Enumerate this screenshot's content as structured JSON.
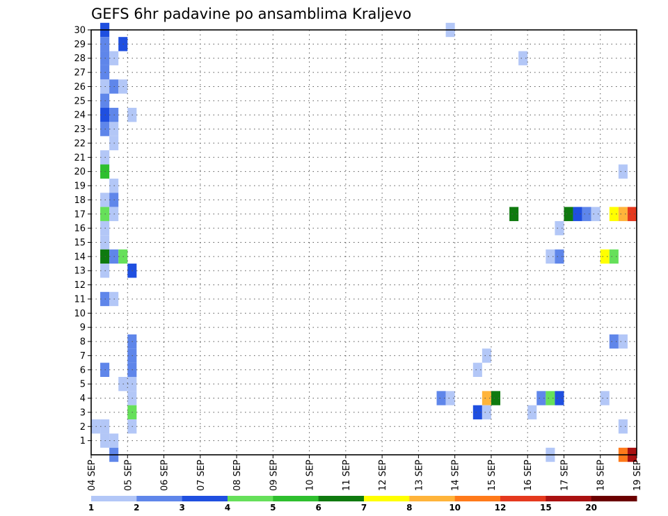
{
  "chart_data": {
    "type": "heatmap",
    "title": "GEFS 6hr padavine po ansamblima Kraljevo",
    "xlabel": "",
    "ylabel": "",
    "x_tick_labels": [
      "04 SEP",
      "05 SEP",
      "06 SEP",
      "07 SEP",
      "08 SEP",
      "09 SEP",
      "10 SEP",
      "11 SEP",
      "12 SEP",
      "13 SEP",
      "14 SEP",
      "15 SEP",
      "16 SEP",
      "17 SEP",
      "18 SEP",
      "19 SEP"
    ],
    "y_tick_labels": [
      "1",
      "2",
      "3",
      "4",
      "5",
      "6",
      "7",
      "8",
      "9",
      "10",
      "11",
      "12",
      "13",
      "14",
      "15",
      "16",
      "17",
      "18",
      "19",
      "20",
      "21",
      "22",
      "23",
      "24",
      "25",
      "26",
      "27",
      "28",
      "29",
      "30"
    ],
    "time_steps_per_day": 4,
    "xlim_days": [
      0,
      15
    ],
    "ylim": [
      0,
      30
    ],
    "grid": true,
    "colorbar": {
      "tick_labels": [
        "1",
        "2",
        "3",
        "4",
        "5",
        "6",
        "7",
        "8",
        "10",
        "12",
        "15",
        "20"
      ],
      "colors": [
        "#b3c7f7",
        "#5f86ea",
        "#1f4fe0",
        "#66e05a",
        "#2ebf2e",
        "#0f7a0f",
        "#ffff00",
        "#ffb43a",
        "#ff7a1a",
        "#e5391e",
        "#aa1111",
        "#6b0000"
      ]
    },
    "cells": [
      {
        "x": 0.25,
        "y": 30,
        "c": "#1f4fe0"
      },
      {
        "x": 0.25,
        "y": 29,
        "c": "#5f86ea"
      },
      {
        "x": 0.75,
        "y": 29,
        "c": "#1f4fe0"
      },
      {
        "x": 0.25,
        "y": 28,
        "c": "#5f86ea"
      },
      {
        "x": 0.5,
        "y": 28,
        "c": "#b3c7f7"
      },
      {
        "x": 0.25,
        "y": 27,
        "c": "#5f86ea"
      },
      {
        "x": 0.25,
        "y": 26,
        "c": "#b3c7f7"
      },
      {
        "x": 0.5,
        "y": 26,
        "c": "#5f86ea"
      },
      {
        "x": 0.75,
        "y": 26,
        "c": "#b3c7f7"
      },
      {
        "x": 0.25,
        "y": 25,
        "c": "#5f86ea"
      },
      {
        "x": 0.25,
        "y": 24,
        "c": "#1f4fe0"
      },
      {
        "x": 0.5,
        "y": 24,
        "c": "#5f86ea"
      },
      {
        "x": 1.0,
        "y": 24,
        "c": "#b3c7f7"
      },
      {
        "x": 0.25,
        "y": 23,
        "c": "#5f86ea"
      },
      {
        "x": 0.5,
        "y": 23,
        "c": "#b3c7f7"
      },
      {
        "x": 0.5,
        "y": 22,
        "c": "#b3c7f7"
      },
      {
        "x": 0.25,
        "y": 21,
        "c": "#b3c7f7"
      },
      {
        "x": 0.25,
        "y": 20,
        "c": "#2ebf2e"
      },
      {
        "x": 0.5,
        "y": 19,
        "c": "#b3c7f7"
      },
      {
        "x": 0.25,
        "y": 18,
        "c": "#b3c7f7"
      },
      {
        "x": 0.5,
        "y": 18,
        "c": "#5f86ea"
      },
      {
        "x": 0.25,
        "y": 17,
        "c": "#66e05a"
      },
      {
        "x": 0.5,
        "y": 17,
        "c": "#b3c7f7"
      },
      {
        "x": 0.25,
        "y": 16,
        "c": "#b3c7f7"
      },
      {
        "x": 0.25,
        "y": 15,
        "c": "#b3c7f7"
      },
      {
        "x": 0.25,
        "y": 14,
        "c": "#0f7a0f"
      },
      {
        "x": 0.5,
        "y": 14,
        "c": "#5f86ea"
      },
      {
        "x": 0.75,
        "y": 14,
        "c": "#66e05a"
      },
      {
        "x": 0.25,
        "y": 13,
        "c": "#b3c7f7"
      },
      {
        "x": 1.0,
        "y": 13,
        "c": "#1f4fe0"
      },
      {
        "x": 0.25,
        "y": 11,
        "c": "#5f86ea"
      },
      {
        "x": 0.5,
        "y": 11,
        "c": "#b3c7f7"
      },
      {
        "x": 1.0,
        "y": 8,
        "c": "#5f86ea"
      },
      {
        "x": 1.0,
        "y": 7,
        "c": "#5f86ea"
      },
      {
        "x": 0.25,
        "y": 6,
        "c": "#5f86ea"
      },
      {
        "x": 1.0,
        "y": 6,
        "c": "#5f86ea"
      },
      {
        "x": 0.75,
        "y": 5,
        "c": "#b3c7f7"
      },
      {
        "x": 1.0,
        "y": 5,
        "c": "#b3c7f7"
      },
      {
        "x": 1.0,
        "y": 4,
        "c": "#b3c7f7"
      },
      {
        "x": 1.0,
        "y": 3,
        "c": "#66e05a"
      },
      {
        "x": 0.0,
        "y": 2,
        "c": "#b3c7f7"
      },
      {
        "x": 0.25,
        "y": 2,
        "c": "#b3c7f7"
      },
      {
        "x": 1.0,
        "y": 2,
        "c": "#b3c7f7"
      },
      {
        "x": 0.25,
        "y": 1,
        "c": "#b3c7f7"
      },
      {
        "x": 0.5,
        "y": 1,
        "c": "#b3c7f7"
      },
      {
        "x": 0.5,
        "y": 0,
        "c": "#5f86ea"
      },
      {
        "x": 9.75,
        "y": 30,
        "c": "#b3c7f7"
      },
      {
        "x": 11.75,
        "y": 28,
        "c": "#b3c7f7"
      },
      {
        "x": 11.5,
        "y": 17,
        "c": "#0f7a0f"
      },
      {
        "x": 13.0,
        "y": 17,
        "c": "#0f7a0f"
      },
      {
        "x": 13.25,
        "y": 17,
        "c": "#1f4fe0"
      },
      {
        "x": 13.5,
        "y": 17,
        "c": "#5f86ea"
      },
      {
        "x": 13.75,
        "y": 17,
        "c": "#b3c7f7"
      },
      {
        "x": 14.25,
        "y": 17,
        "c": "#ffff00"
      },
      {
        "x": 14.5,
        "y": 17,
        "c": "#ffb43a"
      },
      {
        "x": 14.75,
        "y": 17,
        "c": "#e5391e"
      },
      {
        "x": 12.75,
        "y": 16,
        "c": "#b3c7f7"
      },
      {
        "x": 12.5,
        "y": 14,
        "c": "#b3c7f7"
      },
      {
        "x": 12.75,
        "y": 14,
        "c": "#5f86ea"
      },
      {
        "x": 14.0,
        "y": 14,
        "c": "#ffff00"
      },
      {
        "x": 14.25,
        "y": 14,
        "c": "#66e05a"
      },
      {
        "x": 14.5,
        "y": 20,
        "c": "#b3c7f7"
      },
      {
        "x": 14.25,
        "y": 8,
        "c": "#5f86ea"
      },
      {
        "x": 14.5,
        "y": 8,
        "c": "#b3c7f7"
      },
      {
        "x": 10.75,
        "y": 7,
        "c": "#b3c7f7"
      },
      {
        "x": 10.5,
        "y": 6,
        "c": "#b3c7f7"
      },
      {
        "x": 9.5,
        "y": 4,
        "c": "#5f86ea"
      },
      {
        "x": 9.75,
        "y": 4,
        "c": "#b3c7f7"
      },
      {
        "x": 10.75,
        "y": 4,
        "c": "#ffb43a"
      },
      {
        "x": 11.0,
        "y": 4,
        "c": "#0f7a0f"
      },
      {
        "x": 12.25,
        "y": 4,
        "c": "#5f86ea"
      },
      {
        "x": 12.5,
        "y": 4,
        "c": "#66e05a"
      },
      {
        "x": 12.75,
        "y": 4,
        "c": "#1f4fe0"
      },
      {
        "x": 14.0,
        "y": 4,
        "c": "#b3c7f7"
      },
      {
        "x": 10.5,
        "y": 3,
        "c": "#1f4fe0"
      },
      {
        "x": 10.75,
        "y": 3,
        "c": "#b3c7f7"
      },
      {
        "x": 12.0,
        "y": 3,
        "c": "#b3c7f7"
      },
      {
        "x": 14.5,
        "y": 2,
        "c": "#b3c7f7"
      },
      {
        "x": 12.5,
        "y": 0,
        "c": "#b3c7f7"
      },
      {
        "x": 14.5,
        "y": 0,
        "c": "#ff7a1a"
      },
      {
        "x": 14.75,
        "y": 0,
        "c": "#aa1111"
      }
    ]
  }
}
